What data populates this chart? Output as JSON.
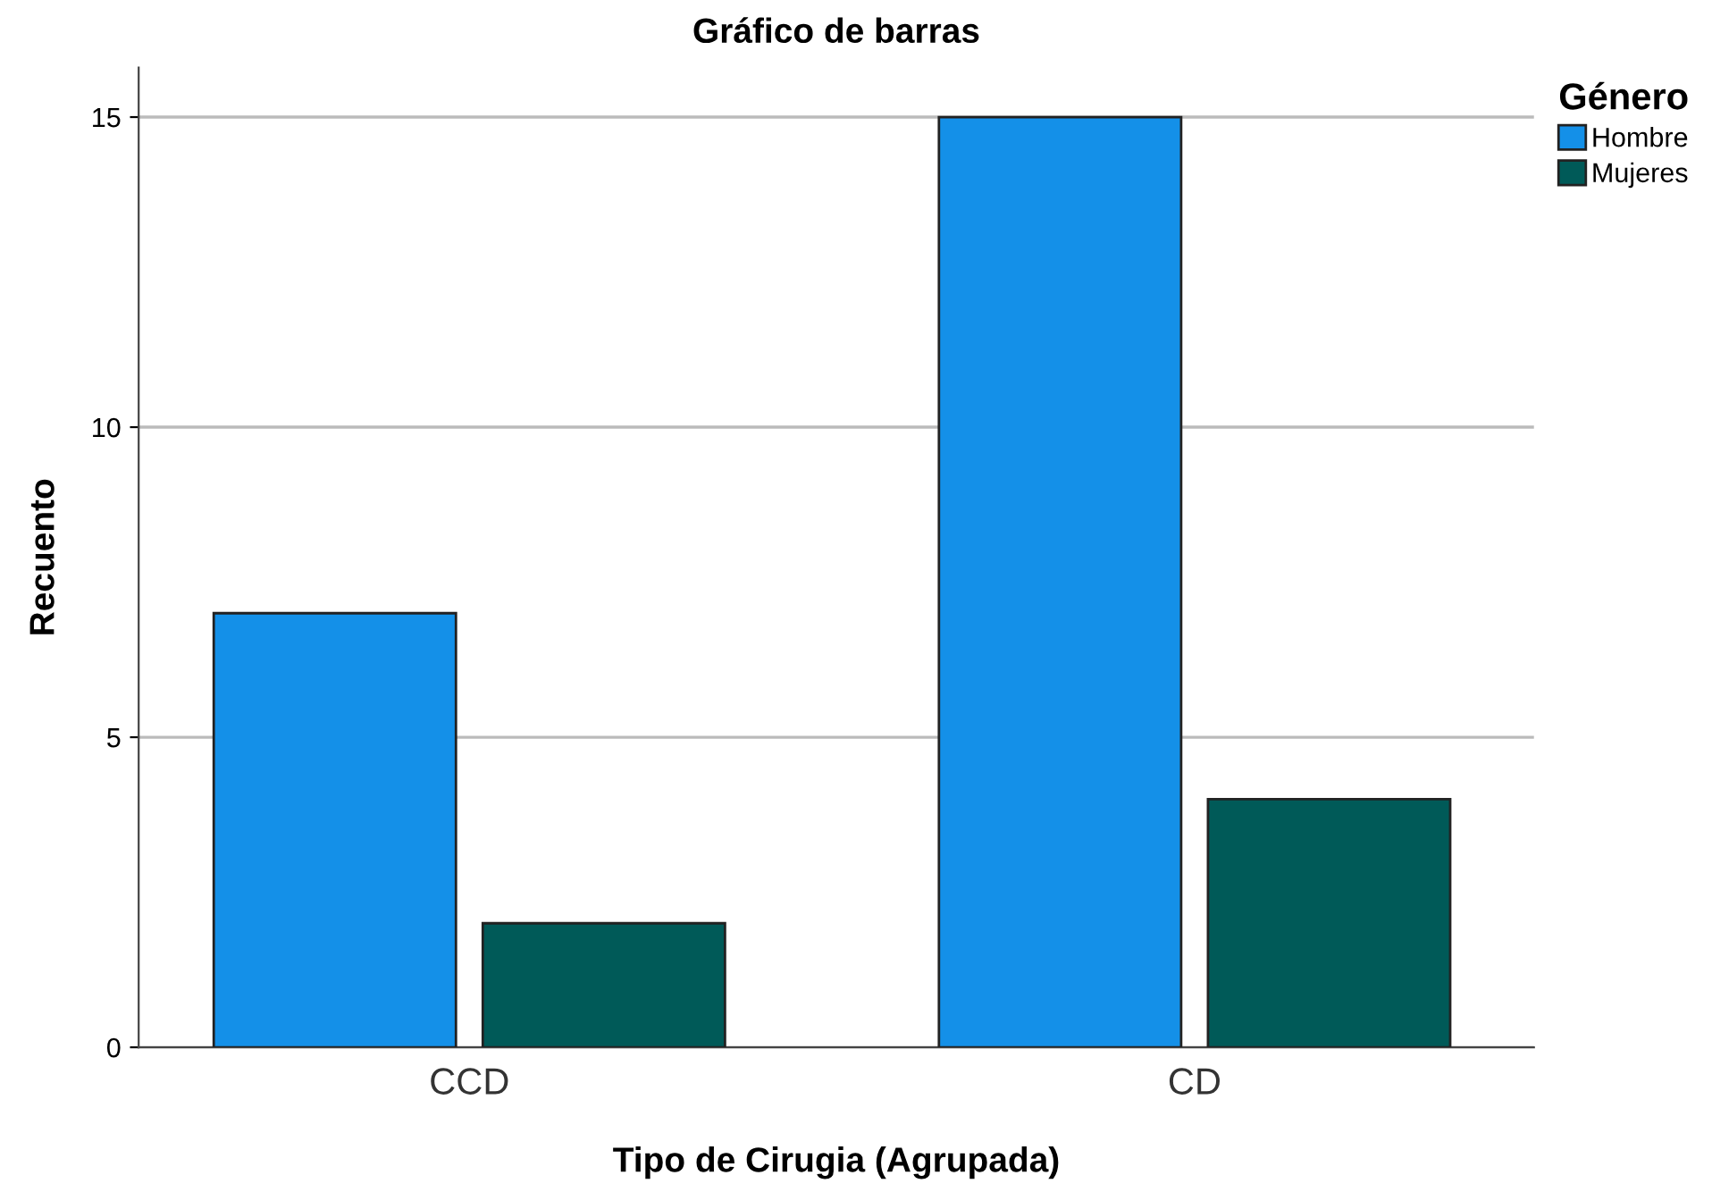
{
  "chart_data": {
    "type": "bar",
    "title": "Gráfico de barras",
    "xlabel": "Tipo de Cirugia (Agrupada)",
    "ylabel": "Recuento",
    "legend_title": "Género",
    "categories": [
      "CCD",
      "CD"
    ],
    "series": [
      {
        "name": "Hombre",
        "color": "#1490e8",
        "values": [
          7,
          15
        ]
      },
      {
        "name": "Mujeres",
        "color": "#005a58",
        "values": [
          2,
          4
        ]
      }
    ],
    "ylim": [
      0,
      15.8
    ],
    "yticks": [
      0,
      5,
      10,
      15
    ],
    "grid": "y",
    "legend": "top right"
  }
}
